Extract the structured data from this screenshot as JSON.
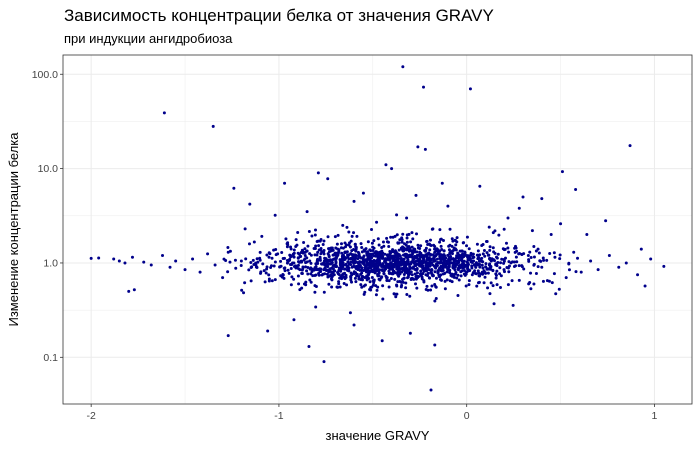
{
  "chart_data": {
    "type": "scatter",
    "title": "Зависимость концентрации белка от значения GRAVY",
    "subtitle": "при индукции ангидробиоза",
    "xlabel": "значение GRAVY",
    "ylabel": "Изменение концентрации белка",
    "xlim": [
      -2.15,
      1.2
    ],
    "ylim": [
      0.032,
      160
    ],
    "y_scale": "log10",
    "x_ticks": [
      -2,
      -1,
      0,
      1
    ],
    "x_tick_labels": [
      "-2",
      "-1",
      "0",
      "1"
    ],
    "y_ticks": [
      0.1,
      1,
      10,
      100
    ],
    "y_tick_labels": [
      "0.1",
      "1.0",
      "10.0",
      "100.0"
    ],
    "grid": true,
    "point_color": "#00008b",
    "panel_border_color": "#333333",
    "grid_color": "#ebebeb",
    "points": [
      {
        "x": -0.34,
        "y": 120
      },
      {
        "x": -0.23,
        "y": 73
      },
      {
        "x": 0.02,
        "y": 70
      },
      {
        "x": -1.61,
        "y": 39
      },
      {
        "x": -1.35,
        "y": 28
      },
      {
        "x": 0.87,
        "y": 17.5
      },
      {
        "x": -0.26,
        "y": 17
      },
      {
        "x": -0.22,
        "y": 16
      },
      {
        "x": -0.43,
        "y": 11
      },
      {
        "x": -0.4,
        "y": 10
      },
      {
        "x": 0.51,
        "y": 9.3
      },
      {
        "x": -0.79,
        "y": 9
      },
      {
        "x": -0.74,
        "y": 7.8
      },
      {
        "x": -0.97,
        "y": 7
      },
      {
        "x": -0.13,
        "y": 7
      },
      {
        "x": 0.07,
        "y": 6.5
      },
      {
        "x": -1.24,
        "y": 6.2
      },
      {
        "x": 0.58,
        "y": 6
      },
      {
        "x": -0.55,
        "y": 5.5
      },
      {
        "x": -0.27,
        "y": 5.2
      },
      {
        "x": 0.3,
        "y": 5
      },
      {
        "x": 0.4,
        "y": 4.8
      },
      {
        "x": -0.6,
        "y": 4.5
      },
      {
        "x": -0.1,
        "y": 4
      },
      {
        "x": 0.28,
        "y": 3.8
      },
      {
        "x": -0.85,
        "y": 3.5
      },
      {
        "x": -1.02,
        "y": 3.2
      },
      {
        "x": 0.22,
        "y": 3
      },
      {
        "x": -0.32,
        "y": 3
      },
      {
        "x": 0.74,
        "y": 2.8
      },
      {
        "x": -0.48,
        "y": 2.7
      },
      {
        "x": 0.5,
        "y": 2.6
      },
      {
        "x": -0.66,
        "y": 2.5
      },
      {
        "x": 0.12,
        "y": 2.4
      },
      {
        "x": -1.18,
        "y": 2.3
      },
      {
        "x": 0.35,
        "y": 2.2
      },
      {
        "x": -0.18,
        "y": 2.3
      },
      {
        "x": 0.64,
        "y": 2.0
      },
      {
        "x": -0.9,
        "y": 2.1
      },
      {
        "x": 0.45,
        "y": 2.0
      },
      {
        "x": -2.0,
        "y": 1.12
      },
      {
        "x": -1.96,
        "y": 1.13
      },
      {
        "x": -1.88,
        "y": 1.1
      },
      {
        "x": -1.85,
        "y": 1.05
      },
      {
        "x": -1.82,
        "y": 1.0
      },
      {
        "x": -1.78,
        "y": 1.15
      },
      {
        "x": -1.72,
        "y": 1.02
      },
      {
        "x": -1.68,
        "y": 0.95
      },
      {
        "x": -1.62,
        "y": 1.2
      },
      {
        "x": -1.58,
        "y": 0.9
      },
      {
        "x": -1.55,
        "y": 1.05
      },
      {
        "x": -1.5,
        "y": 0.85
      },
      {
        "x": -1.46,
        "y": 1.1
      },
      {
        "x": -1.42,
        "y": 0.8
      },
      {
        "x": -1.38,
        "y": 1.25
      },
      {
        "x": -1.34,
        "y": 0.95
      },
      {
        "x": -1.3,
        "y": 0.7
      },
      {
        "x": -1.27,
        "y": 1.3
      },
      {
        "x": -1.23,
        "y": 0.88
      },
      {
        "x": -1.2,
        "y": 1.05
      },
      {
        "x": -1.8,
        "y": 0.5
      },
      {
        "x": -1.77,
        "y": 0.52
      },
      {
        "x": -1.27,
        "y": 0.17
      },
      {
        "x": -1.06,
        "y": 0.19
      },
      {
        "x": -0.76,
        "y": 0.09
      },
      {
        "x": -0.84,
        "y": 0.13
      },
      {
        "x": -0.19,
        "y": 0.045
      },
      {
        "x": -0.17,
        "y": 0.135
      },
      {
        "x": -0.45,
        "y": 0.15
      },
      {
        "x": -0.92,
        "y": 0.25
      },
      {
        "x": -0.6,
        "y": 0.22
      },
      {
        "x": -0.3,
        "y": 0.18
      },
      {
        "x": 0.95,
        "y": 0.57
      },
      {
        "x": 0.98,
        "y": 1.1
      },
      {
        "x": 0.93,
        "y": 1.4
      },
      {
        "x": 1.05,
        "y": 0.92
      },
      {
        "x": 0.91,
        "y": 0.75
      },
      {
        "x": 0.85,
        "y": 1.0
      },
      {
        "x": 0.81,
        "y": 0.9
      },
      {
        "x": 0.76,
        "y": 1.2
      },
      {
        "x": 0.7,
        "y": 0.85
      },
      {
        "x": 0.66,
        "y": 1.05
      },
      {
        "x": 0.61,
        "y": 0.8
      },
      {
        "x": 0.57,
        "y": 1.3
      },
      {
        "x": 0.53,
        "y": 0.7
      },
      {
        "x": 0.47,
        "y": 1.15
      },
      {
        "x": 0.43,
        "y": 0.65
      },
      {
        "x": 0.38,
        "y": 1.4
      },
      {
        "x": 0.33,
        "y": 0.6
      },
      {
        "x": 0.26,
        "y": 1.5
      },
      {
        "x": 0.18,
        "y": 0.55
      }
    ],
    "cloud": {
      "count": 1700,
      "x_center": -0.4,
      "x_sd": 0.36,
      "log10_y_center": 0.0,
      "log10_y_sd": 0.08,
      "x_range": [
        -1.3,
        0.6
      ]
    }
  }
}
